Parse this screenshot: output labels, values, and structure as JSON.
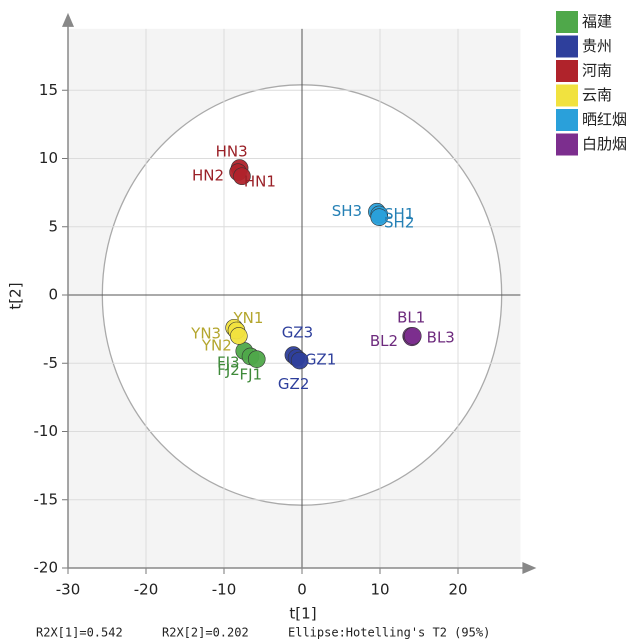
{
  "chart_data": {
    "type": "scatter",
    "xlabel": "t[1]",
    "ylabel": "t[2]",
    "xlim": [
      -30,
      28
    ],
    "ylim": [
      -20,
      19.5
    ],
    "xticks": [
      -30,
      -20,
      -10,
      0,
      10,
      20
    ],
    "yticks": [
      -20,
      -15,
      -10,
      -5,
      0,
      5,
      10,
      15
    ],
    "grid": true,
    "legend": "outside-top-right",
    "ellipse": {
      "rx": 25.6,
      "ry": 15.4
    },
    "series": [
      {
        "name": "福建",
        "color": "#4fa84a",
        "label_color": "#3f8a3a",
        "labels": [
          "FJ3",
          "FJ2",
          "FJ1"
        ],
        "x": [
          -7.4,
          -6.6,
          -5.8
        ],
        "values": [
          -4.1,
          -4.5,
          -4.7
        ]
      },
      {
        "name": "贵州",
        "color": "#2e3f9c",
        "label_color": "#2e3f9c",
        "labels": [
          "GZ3",
          "GZ1",
          "GZ2"
        ],
        "x": [
          -1.1,
          -0.7,
          -0.3
        ],
        "values": [
          -4.4,
          -4.6,
          -4.8
        ]
      },
      {
        "name": "河南",
        "color": "#b0232b",
        "label_color": "#9a2027",
        "labels": [
          "HN3",
          "HN2",
          "HN1"
        ],
        "x": [
          -8.0,
          -8.2,
          -7.7
        ],
        "values": [
          9.3,
          9.0,
          8.7
        ]
      },
      {
        "name": "云南",
        "color": "#f1e23f",
        "label_color": "#b4a62e",
        "labels": [
          "YN3",
          "YN1",
          "YN2"
        ],
        "x": [
          -8.7,
          -8.4,
          -8.1
        ],
        "values": [
          -2.4,
          -2.6,
          -3.0
        ]
      },
      {
        "name": "晒红烟",
        "color": "#2aa0da",
        "label_color": "#2580b5",
        "labels": [
          "SH3",
          "SH1",
          "SH2"
        ],
        "x": [
          9.6,
          9.9,
          9.9
        ],
        "values": [
          6.1,
          5.9,
          5.7
        ]
      },
      {
        "name": "白肋烟",
        "color": "#7c2e8e",
        "label_color": "#6d2a7d",
        "labels": [
          "BL1",
          "BL2",
          "BL3"
        ],
        "x": [
          14.0,
          14.1,
          14.2
        ],
        "values": [
          -3.0,
          -3.1,
          -3.0
        ]
      }
    ],
    "footer": [
      "R2X[1]=0.542",
      "R2X[2]=0.202",
      "Ellipse:Hotelling's T2 (95%)"
    ]
  }
}
